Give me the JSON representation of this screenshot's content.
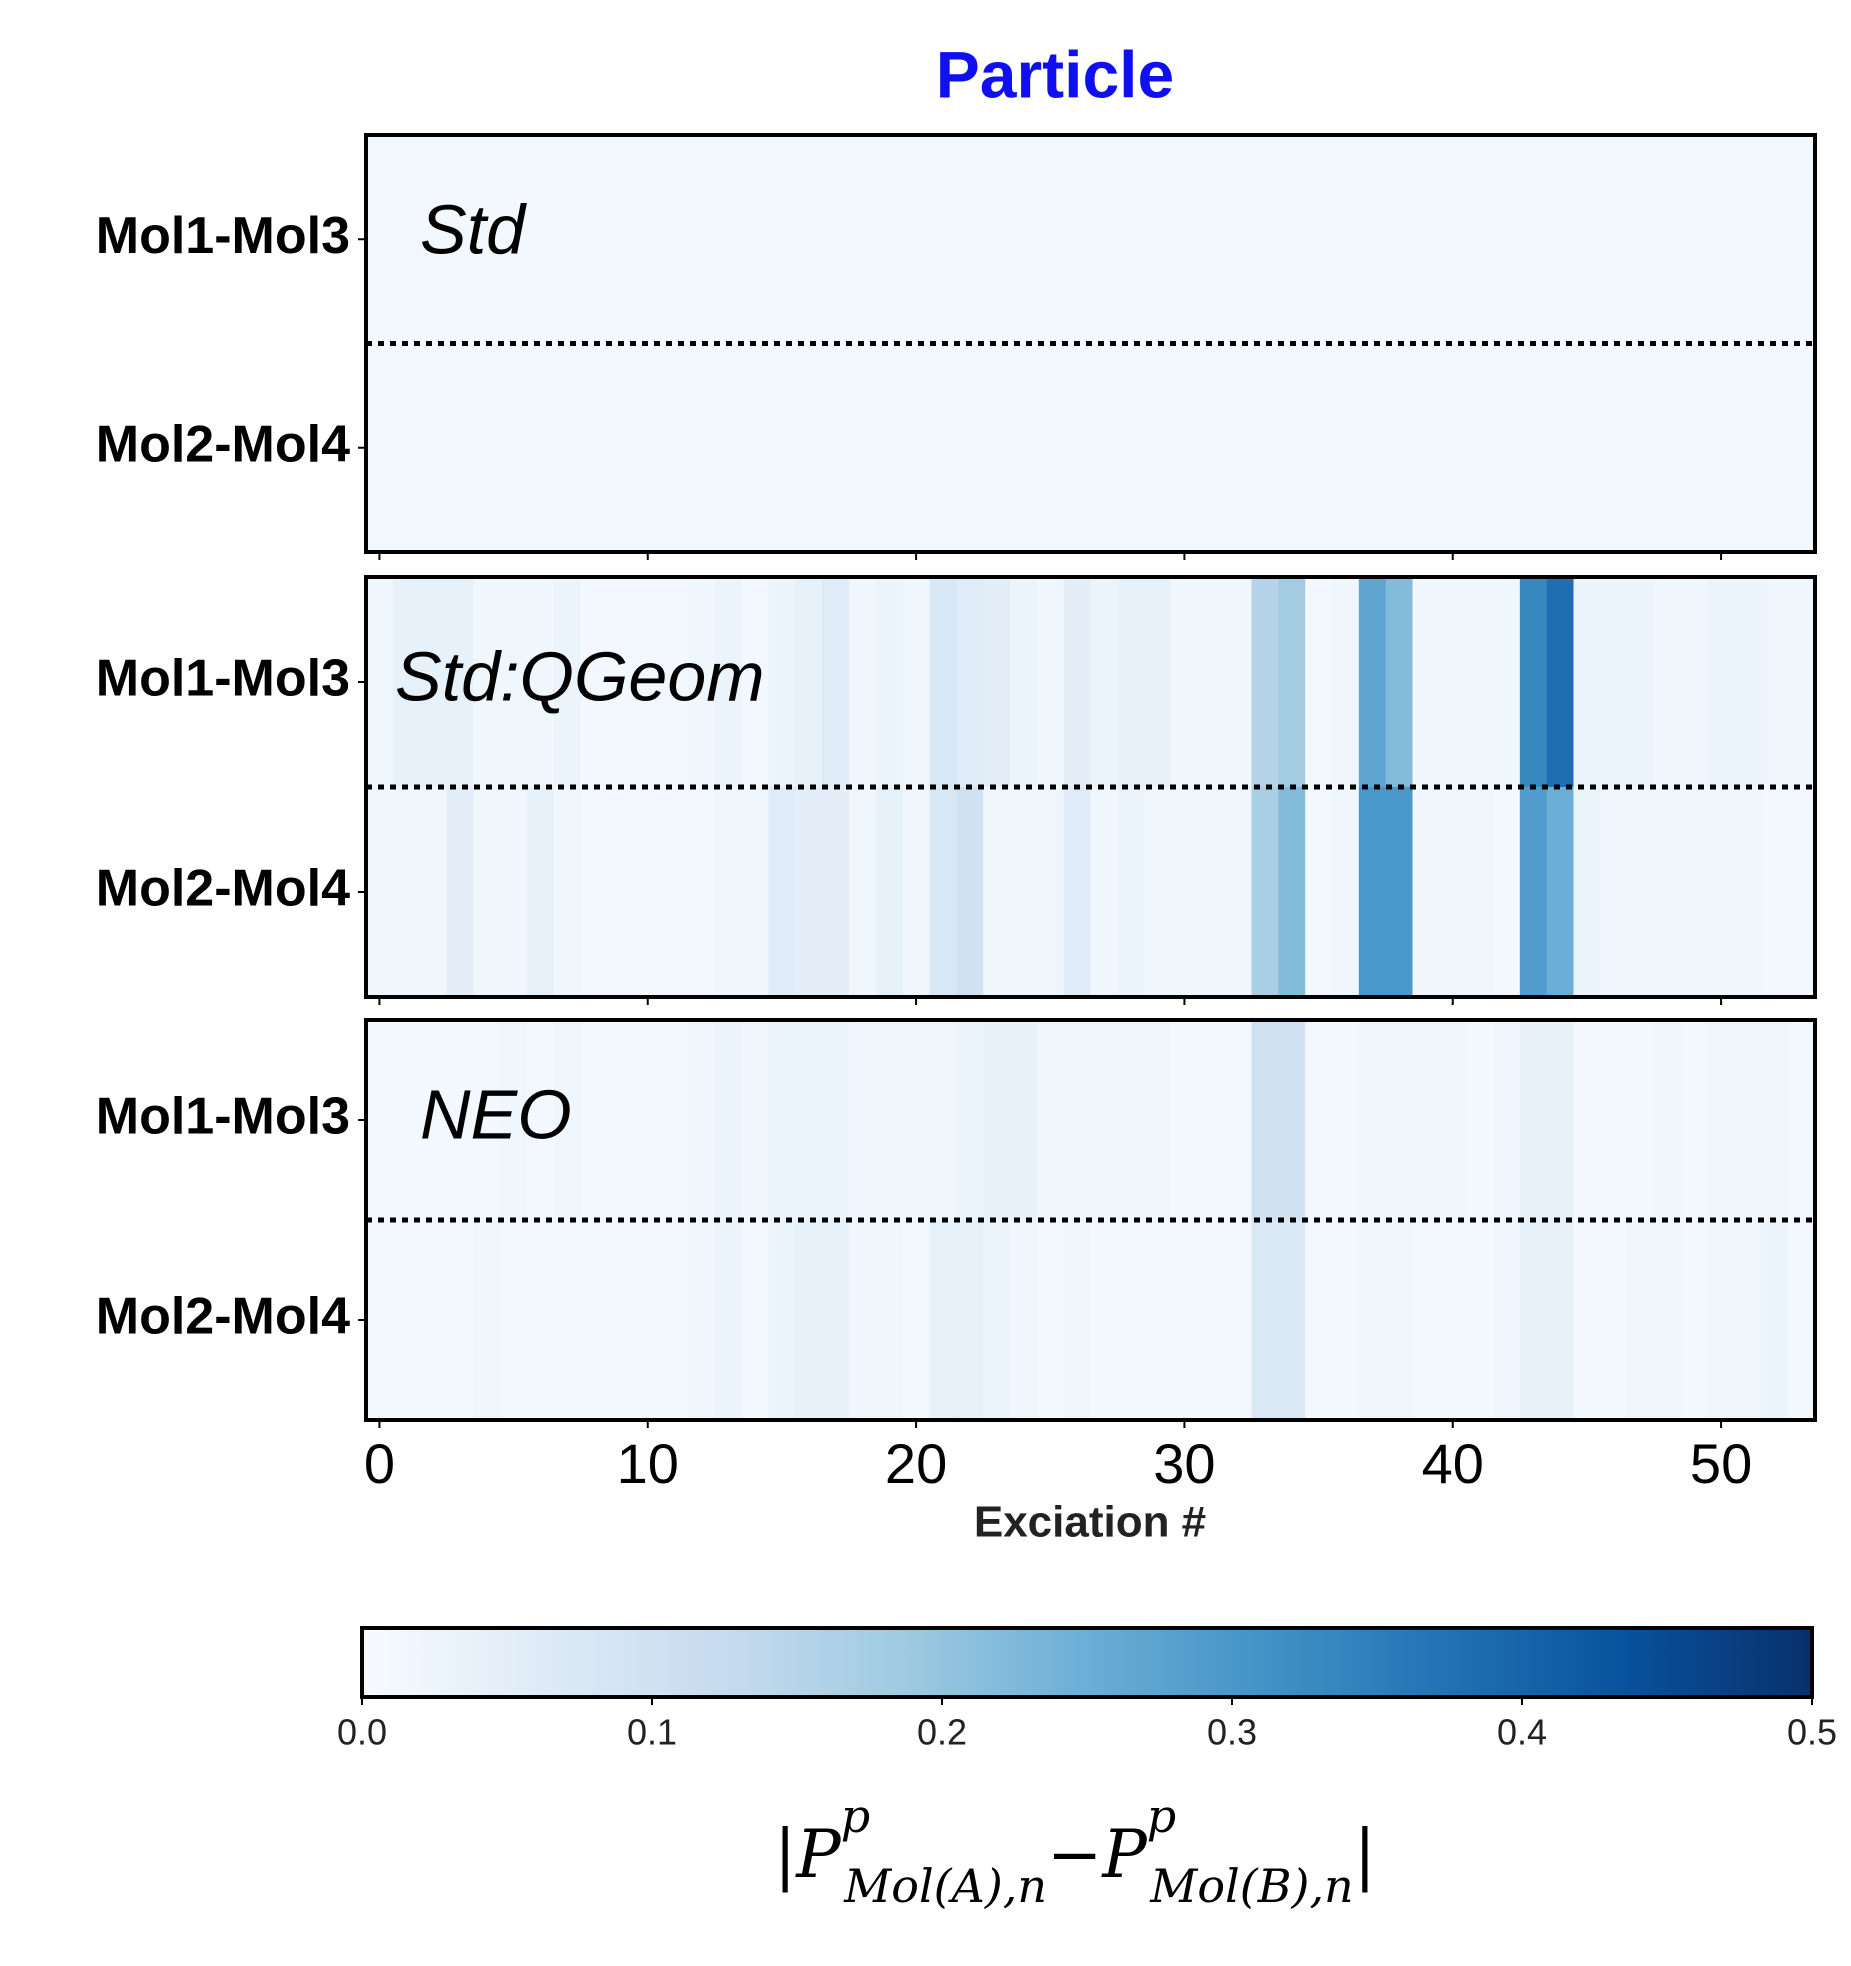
{
  "chart_data": {
    "type": "heatmap",
    "title": "Particle",
    "title_color": "#0f0fef",
    "xlabel": "Exciation #",
    "xlim": [
      -0.5,
      53.5
    ],
    "xticks": [
      0,
      10,
      20,
      30,
      40,
      50
    ],
    "colormap": [
      "#f7fbff",
      "#deebf7",
      "#c6dbef",
      "#9ecae1",
      "#6baed6",
      "#4292c6",
      "#2171b5",
      "#08519c",
      "#08306b"
    ],
    "zlim": [
      0,
      0.5
    ],
    "colorbar_ticks": [
      {
        "value": 0,
        "label": "0.0"
      },
      {
        "value": 0.1,
        "label": "0.1"
      },
      {
        "value": 0.2,
        "label": "0.2"
      },
      {
        "value": 0.3,
        "label": "0.3"
      },
      {
        "value": 0.4,
        "label": "0.4"
      },
      {
        "value": 0.5,
        "label": "0.5"
      }
    ],
    "colorbar_label": [
      "|",
      "P",
      "p",
      "Mol(A),n",
      "−",
      "P",
      "p",
      "Mol(B),n",
      "|"
    ],
    "panels": [
      {
        "label": "Std",
        "rows": [
          "Mol1-Mol3",
          "Mol2-Mol4"
        ],
        "z": [
          [
            0.01,
            0.01,
            0.01,
            0.01,
            0.01,
            0.01,
            0.01,
            0.01,
            0.01,
            0.01,
            0.01,
            0.01,
            0.01,
            0.01,
            0.01,
            0.01,
            0.01,
            0.01,
            0.01,
            0.01,
            0.01,
            0.01,
            0.01,
            0.01,
            0.01,
            0.01,
            0.01,
            0.01,
            0.01,
            0.01,
            0.01,
            0.01,
            0.01,
            0.01,
            0.01,
            0.01,
            0.01,
            0.01,
            0.01,
            0.01,
            0.01,
            0.01,
            0.01,
            0.01,
            0.01,
            0.01,
            0.01,
            0.01,
            0.01,
            0.01,
            0.01,
            0.01,
            0.01,
            0.01
          ],
          [
            0.01,
            0.01,
            0.01,
            0.01,
            0.01,
            0.01,
            0.01,
            0.01,
            0.01,
            0.01,
            0.01,
            0.01,
            0.01,
            0.01,
            0.01,
            0.01,
            0.01,
            0.01,
            0.01,
            0.01,
            0.01,
            0.01,
            0.01,
            0.01,
            0.01,
            0.01,
            0.01,
            0.01,
            0.01,
            0.01,
            0.01,
            0.01,
            0.01,
            0.01,
            0.01,
            0.01,
            0.01,
            0.01,
            0.01,
            0.01,
            0.01,
            0.01,
            0.01,
            0.01,
            0.01,
            0.01,
            0.01,
            0.01,
            0.01,
            0.01,
            0.01,
            0.01,
            0.01,
            0.01
          ]
        ]
      },
      {
        "label": "Std:QGeom",
        "rows": [
          "Mol1-Mol3",
          "Mol2-Mol4"
        ],
        "z": [
          [
            0.02,
            0.04,
            0.04,
            0.04,
            0.02,
            0.02,
            0.02,
            0.03,
            0.01,
            0.01,
            0.01,
            0.01,
            0.02,
            0.03,
            0.01,
            0.03,
            0.04,
            0.06,
            0.02,
            0.03,
            0.02,
            0.08,
            0.06,
            0.05,
            0.03,
            0.02,
            0.05,
            0.03,
            0.04,
            0.04,
            0.02,
            0.02,
            0.02,
            0.15,
            0.18,
            0.01,
            0.02,
            0.27,
            0.22,
            0.02,
            0.02,
            0.02,
            0.02,
            0.33,
            0.38,
            0.03,
            0.03,
            0.03,
            0.02,
            0.02,
            0.03,
            0.03,
            0.02,
            0.02
          ],
          [
            0.02,
            0.02,
            0.02,
            0.05,
            0.02,
            0.02,
            0.04,
            0.02,
            0.01,
            0.01,
            0.01,
            0.01,
            0.01,
            0.02,
            0.02,
            0.06,
            0.05,
            0.05,
            0.02,
            0.04,
            0.02,
            0.08,
            0.1,
            0.02,
            0.02,
            0.02,
            0.06,
            0.02,
            0.03,
            0.02,
            0.02,
            0.02,
            0.02,
            0.17,
            0.22,
            0.01,
            0.02,
            0.3,
            0.3,
            0.02,
            0.02,
            0.02,
            0.01,
            0.29,
            0.25,
            0.03,
            0.02,
            0.02,
            0.02,
            0.02,
            0.02,
            0.02,
            0.01,
            0.01
          ]
        ]
      },
      {
        "label": "NEO",
        "rows": [
          "Mol1-Mol3",
          "Mol2-Mol4"
        ],
        "z": [
          [
            0.01,
            0.01,
            0.01,
            0.01,
            0.01,
            0.02,
            0.01,
            0.02,
            0.01,
            0.01,
            0.01,
            0.01,
            0.02,
            0.03,
            0.02,
            0.03,
            0.03,
            0.03,
            0.02,
            0.02,
            0.02,
            0.02,
            0.03,
            0.04,
            0.04,
            0.02,
            0.02,
            0.02,
            0.02,
            0.02,
            0.01,
            0.01,
            0.01,
            0.1,
            0.1,
            0.01,
            0.01,
            0.02,
            0.02,
            0.02,
            0.02,
            0.01,
            0.02,
            0.04,
            0.04,
            0.01,
            0.01,
            0.01,
            0.02,
            0.01,
            0.02,
            0.02,
            0.02,
            0.01
          ],
          [
            0.01,
            0.01,
            0.01,
            0.01,
            0.02,
            0.01,
            0.01,
            0.01,
            0.01,
            0.01,
            0.01,
            0.01,
            0.02,
            0.03,
            0.01,
            0.03,
            0.04,
            0.04,
            0.02,
            0.02,
            0.01,
            0.04,
            0.04,
            0.03,
            0.02,
            0.01,
            0.02,
            0.01,
            0.01,
            0.01,
            0.01,
            0.01,
            0.01,
            0.07,
            0.07,
            0.01,
            0.01,
            0.02,
            0.02,
            0.01,
            0.01,
            0.01,
            0.02,
            0.04,
            0.04,
            0.01,
            0.01,
            0.02,
            0.02,
            0.01,
            0.02,
            0.02,
            0.03,
            0.01
          ]
        ]
      }
    ]
  }
}
